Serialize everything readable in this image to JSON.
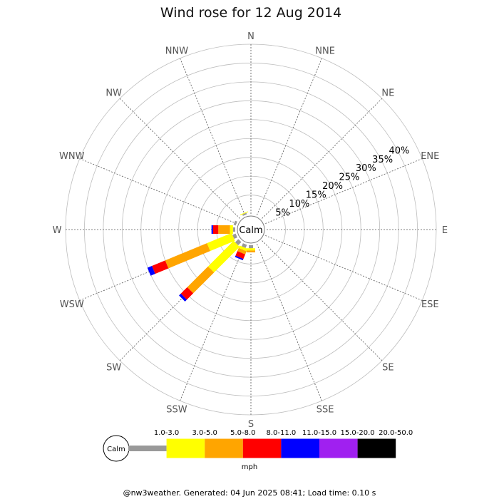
{
  "chart_data": {
    "type": "wind-rose",
    "title": "Wind rose for 12 Aug 2014",
    "directions": [
      "N",
      "NNE",
      "NE",
      "ENE",
      "E",
      "ESE",
      "SE",
      "SSE",
      "S",
      "SSW",
      "SW",
      "WSW",
      "W",
      "WNW",
      "NW",
      "NNW"
    ],
    "rings_percent": [
      5,
      10,
      15,
      20,
      25,
      30,
      35,
      40
    ],
    "ring_labels": [
      "5%",
      "10%",
      "15%",
      "20%",
      "25%",
      "30%",
      "35%",
      "40%"
    ],
    "r_max_percent": 45,
    "calm_label": "Calm",
    "unit_label": "mph",
    "speed_bins": [
      {
        "label": "1.0-3.0",
        "color": "#999999"
      },
      {
        "label": "3.0-5.0",
        "color": "#ffff00"
      },
      {
        "label": "5.0-8.0",
        "color": "#ffa500"
      },
      {
        "label": "8.0-11.0",
        "color": "#ff0000"
      },
      {
        "label": "11.0-15.0",
        "color": "#0000ff"
      },
      {
        "label": "15.0-20.0",
        "color": "#a020f0"
      },
      {
        "label": "20.0-50.0",
        "color": "#000000"
      }
    ],
    "frequencies_percent": {
      "N": [
        0,
        0,
        0,
        0,
        0,
        0,
        0
      ],
      "NNE": [
        0,
        0,
        0,
        0,
        0,
        0,
        0
      ],
      "NE": [
        0,
        0,
        0,
        0,
        0,
        0,
        0
      ],
      "ENE": [
        0,
        0,
        0,
        0,
        0,
        0,
        0
      ],
      "E": [
        0,
        0,
        0,
        0,
        0,
        0,
        0
      ],
      "ESE": [
        0,
        0,
        0,
        0,
        0,
        0,
        0
      ],
      "SE": [
        0,
        0,
        0,
        0,
        0,
        0,
        0
      ],
      "SSE": [
        0,
        0,
        0,
        0,
        0,
        0,
        0
      ],
      "S": [
        0.8,
        0.6,
        0.5,
        0,
        0,
        0,
        0
      ],
      "SSW": [
        0.9,
        0.7,
        0.9,
        1.3,
        0.4,
        0,
        0
      ],
      "SW": [
        1.2,
        9.6,
        7.8,
        2.4,
        0.7,
        0,
        0
      ],
      "WSW": [
        0.9,
        7.1,
        12.0,
        3.8,
        1.3,
        0,
        0
      ],
      "W": [
        0.6,
        0.8,
        3.1,
        1.4,
        0.4,
        0,
        0
      ],
      "WNW": [
        0.6,
        0,
        0,
        0,
        0,
        0,
        0
      ],
      "NW": [
        0,
        0,
        0,
        0,
        0,
        0,
        0
      ],
      "NNW": [
        0.4,
        0.2,
        0,
        0,
        0,
        0,
        0
      ]
    }
  },
  "footer": "@nw3weather. Generated: 04 Jun 2025 08:41; Load time: 0.10 s"
}
